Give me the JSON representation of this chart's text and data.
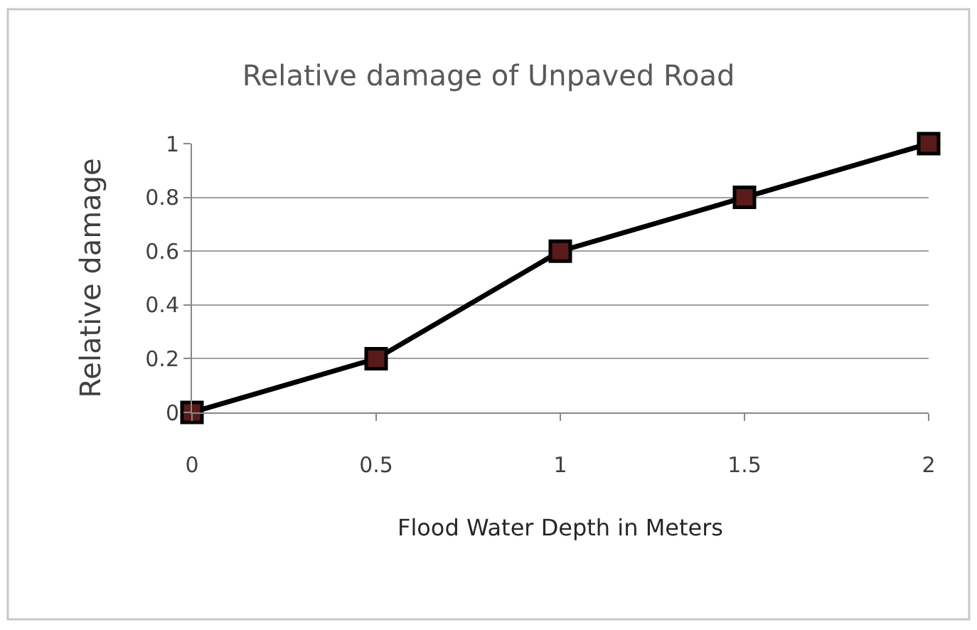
{
  "chart_data": {
    "type": "line",
    "title": "Relative damage of Unpaved Road",
    "xlabel": "Flood Water Depth in Meters",
    "ylabel": "Relative damage",
    "x": [
      0,
      0.5,
      1,
      1.5,
      2
    ],
    "series": [
      {
        "color": "#000000",
        "values": [
          0,
          0.2,
          0.6,
          0.8,
          1
        ]
      }
    ],
    "xlim": [
      0,
      2
    ],
    "xticks": [
      0,
      0.5,
      1,
      1.5,
      2
    ],
    "ylim": [
      0,
      1
    ],
    "yticks": [
      0,
      0.2,
      0.4,
      0.6,
      0.8,
      1
    ],
    "grid": "y",
    "marker": "square",
    "line_style": "solid"
  }
}
